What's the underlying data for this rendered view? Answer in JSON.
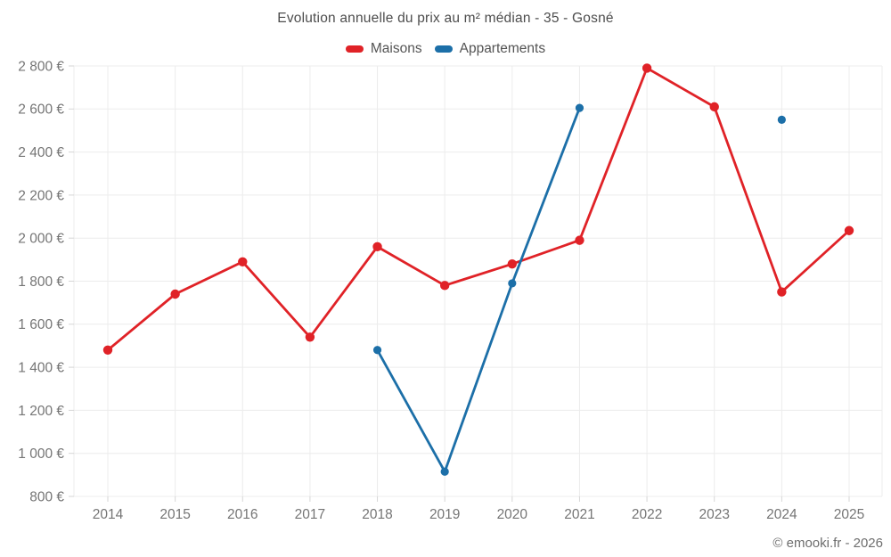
{
  "header": {
    "title": "Evolution annuelle du prix au m² médian - 35 - Gosné"
  },
  "legend": {
    "items": [
      {
        "label": "Maisons",
        "color": "#e02227"
      },
      {
        "label": "Appartements",
        "color": "#1c6fa8"
      }
    ]
  },
  "footer": {
    "credit": "© emooki.fr - 2026"
  },
  "chart_data": {
    "type": "line",
    "title": "Evolution annuelle du prix au m² médian - 35 - Gosné",
    "categories": [
      "2014",
      "2015",
      "2016",
      "2017",
      "2018",
      "2019",
      "2020",
      "2021",
      "2022",
      "2023",
      "2024",
      "2025"
    ],
    "series": [
      {
        "name": "Maisons",
        "color": "#e02227",
        "marker_radius": 5.2,
        "values": [
          1480,
          1740,
          1890,
          1540,
          1960,
          1780,
          1880,
          1990,
          2790,
          2610,
          1750,
          2035
        ]
      },
      {
        "name": "Appartements",
        "color": "#1c6fa8",
        "marker_radius": 4.6,
        "values": [
          null,
          null,
          null,
          null,
          1480,
          915,
          1790,
          2605,
          null,
          null,
          2550,
          null
        ]
      }
    ],
    "xlabel": "",
    "ylabel": "",
    "ylim": [
      800,
      2800
    ],
    "ytick_step": 200,
    "ytick_suffix": "€",
    "grid": true,
    "legend_position": "top"
  },
  "styles": {
    "background": "#ffffff",
    "grid_color": "#ececec",
    "tick_color": "#d6d6d6",
    "title_color": "#4d4d4d",
    "axis_label_color": "#757575",
    "maisons_color": "#e02227",
    "appartements_color": "#1c6fa8"
  }
}
